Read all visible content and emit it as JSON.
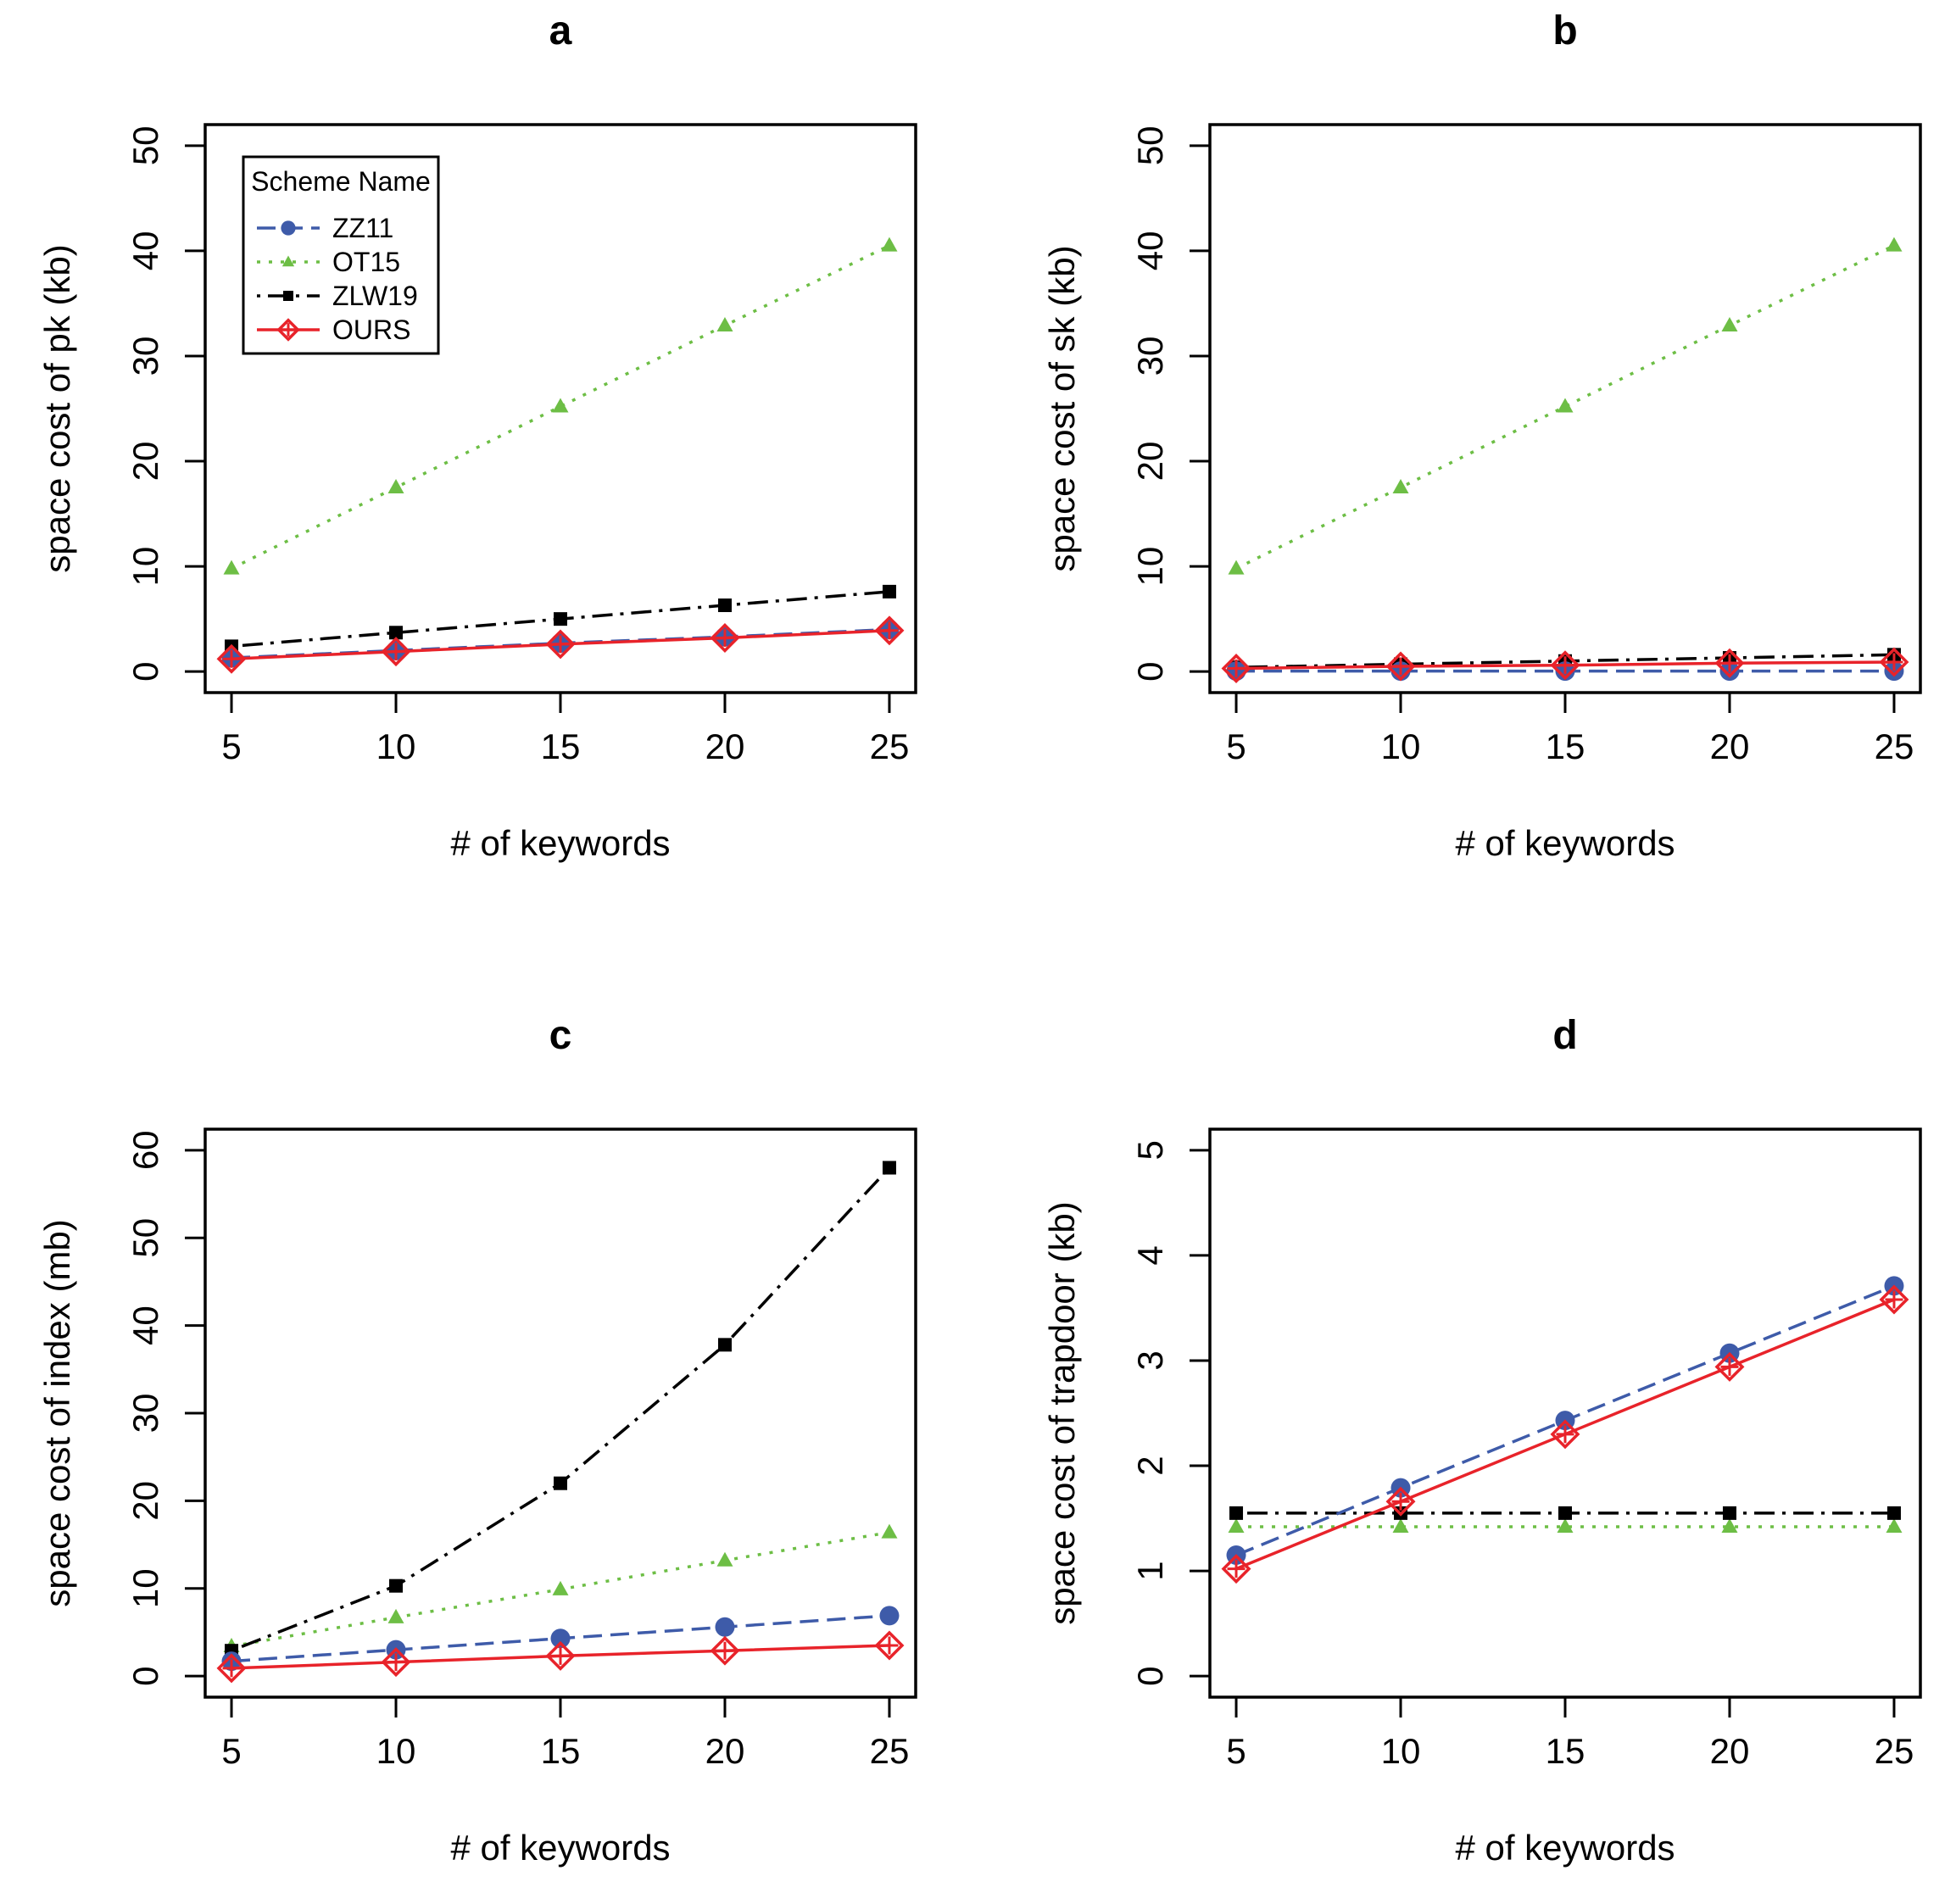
{
  "legend": {
    "title": "Scheme Name",
    "entries": [
      {
        "name": "ZZ11",
        "color": "#3E5BA9",
        "marker": "circle",
        "dash": "dashed"
      },
      {
        "name": "OT15",
        "color": "#6DBE45",
        "marker": "triangle",
        "dash": "dotted"
      },
      {
        "name": "ZLW19",
        "color": "#000000",
        "marker": "square",
        "dash": "dotdash"
      },
      {
        "name": "OURS",
        "color": "#E8232A",
        "marker": "diamond-plus",
        "dash": "solid"
      }
    ]
  },
  "chart_data": [
    {
      "panel": "a",
      "type": "line",
      "title": "a",
      "xlabel": "# of keywords",
      "ylabel": "space cost of pk (kb)",
      "x": [
        5,
        10,
        15,
        20,
        25
      ],
      "xticks": [
        5,
        10,
        15,
        20,
        25
      ],
      "yticks": [
        0,
        10,
        20,
        30,
        40,
        50
      ],
      "ylim": [
        -2,
        52
      ],
      "legend": "top-left",
      "series": [
        {
          "name": "ZZ11",
          "values": [
            1.3,
            2.0,
            2.7,
            3.3,
            4.0
          ]
        },
        {
          "name": "OT15",
          "values": [
            9.8,
            17.5,
            25.2,
            32.9,
            40.5
          ]
        },
        {
          "name": "ZLW19",
          "values": [
            2.4,
            3.7,
            5.0,
            6.3,
            7.6
          ]
        },
        {
          "name": "OURS",
          "values": [
            1.2,
            1.9,
            2.6,
            3.2,
            3.9
          ]
        }
      ]
    },
    {
      "panel": "b",
      "type": "line",
      "title": "b",
      "xlabel": "# of keywords",
      "ylabel": "space cost of sk (kb)",
      "x": [
        5,
        10,
        15,
        20,
        25
      ],
      "xticks": [
        5,
        10,
        15,
        20,
        25
      ],
      "yticks": [
        0,
        10,
        20,
        30,
        40,
        50
      ],
      "ylim": [
        -2,
        52
      ],
      "series": [
        {
          "name": "ZZ11",
          "values": [
            0.05,
            0.05,
            0.05,
            0.05,
            0.05
          ]
        },
        {
          "name": "OT15",
          "values": [
            9.8,
            17.5,
            25.2,
            32.9,
            40.5
          ]
        },
        {
          "name": "ZLW19",
          "values": [
            0.4,
            0.7,
            1.0,
            1.3,
            1.6
          ]
        },
        {
          "name": "OURS",
          "values": [
            0.3,
            0.5,
            0.6,
            0.8,
            0.9
          ]
        }
      ]
    },
    {
      "panel": "c",
      "type": "line",
      "title": "c",
      "xlabel": "# of keywords",
      "ylabel": "space cost of index (mb)",
      "x": [
        5,
        10,
        15,
        20,
        25
      ],
      "xticks": [
        5,
        10,
        15,
        20,
        25
      ],
      "yticks": [
        0,
        10,
        20,
        30,
        40,
        50,
        60
      ],
      "ylim": [
        -2.4,
        62.4
      ],
      "series": [
        {
          "name": "ZZ11",
          "values": [
            1.7,
            3.0,
            4.3,
            5.6,
            6.9
          ]
        },
        {
          "name": "OT15",
          "values": [
            3.4,
            6.7,
            9.9,
            13.2,
            16.4
          ]
        },
        {
          "name": "ZLW19",
          "values": [
            2.9,
            10.3,
            22.0,
            37.8,
            58.0
          ]
        },
        {
          "name": "OURS",
          "values": [
            0.9,
            1.6,
            2.3,
            2.9,
            3.5
          ]
        }
      ]
    },
    {
      "panel": "d",
      "type": "line",
      "title": "d",
      "xlabel": "# of keywords",
      "ylabel": "space cost of trapdoor (kb)",
      "x": [
        5,
        10,
        15,
        20,
        25
      ],
      "xticks": [
        5,
        10,
        15,
        20,
        25
      ],
      "yticks": [
        0,
        1,
        2,
        3,
        4,
        5
      ],
      "ylim": [
        -0.2,
        5.2
      ],
      "series": [
        {
          "name": "ZZ11",
          "values": [
            1.15,
            1.79,
            2.43,
            3.07,
            3.71
          ]
        },
        {
          "name": "OT15",
          "values": [
            1.42,
            1.42,
            1.42,
            1.42,
            1.42
          ]
        },
        {
          "name": "ZLW19",
          "values": [
            1.55,
            1.55,
            1.55,
            1.55,
            1.55
          ]
        },
        {
          "name": "OURS",
          "values": [
            1.02,
            1.66,
            2.3,
            2.94,
            3.58
          ]
        }
      ]
    }
  ]
}
